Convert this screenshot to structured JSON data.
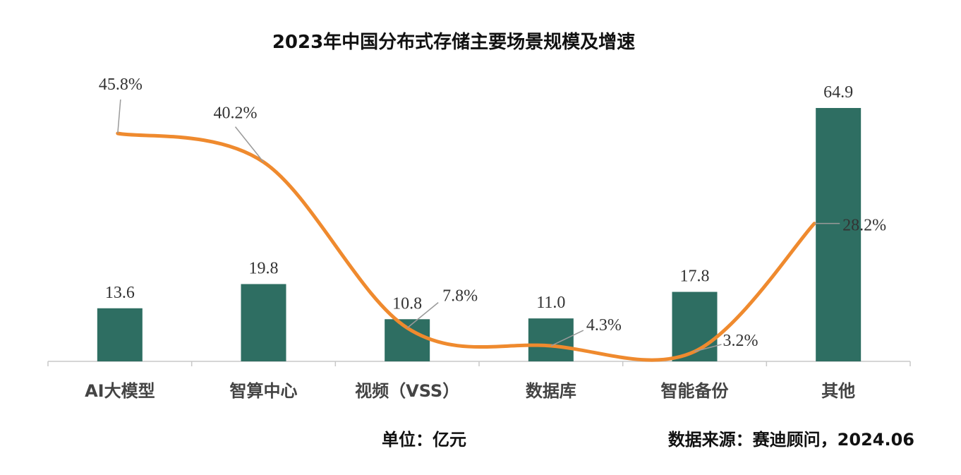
{
  "chart_data": {
    "type": "bar",
    "title": "2023年中国分布式存储主要场景规模及增速",
    "categories": [
      "AI大模型",
      "智算中心",
      "视频（VSS）",
      "数据库",
      "智能备份",
      "其他"
    ],
    "series": [
      {
        "values": [
          13.6,
          19.8,
          10.8,
          11.0,
          17.8,
          64.9
        ]
      },
      {
        "values": [
          45.8,
          40.2,
          7.8,
          4.3,
          3.2,
          28.2
        ]
      }
    ],
    "value_labels": [
      "13.6",
      "19.8",
      "10.8",
      "11.0",
      "17.8",
      "64.9"
    ],
    "growth_labels": [
      "45.8%",
      "40.2%",
      "7.8%",
      "4.3%",
      "3.2%",
      "28.2%"
    ],
    "bar_color": "#2e6e62",
    "line_color": "#ef8a2e",
    "grid": false,
    "legend": "none"
  },
  "footer": {
    "unit": "单位：亿元",
    "source": "数据来源：赛迪顾问，2024.06"
  }
}
